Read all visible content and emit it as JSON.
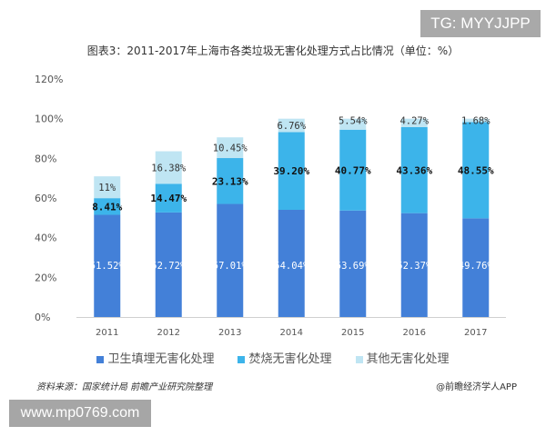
{
  "watermark_top": "TG: MYYJJPP",
  "watermark_bottom": "www.mp0769.com",
  "source": "资料来源：国家统计局 前瞻产业研究院整理",
  "credit": "@前瞻经济学人APP",
  "chart_data": {
    "type": "bar",
    "stacked": true,
    "title": "图表3：2011-2017年上海市各类垃圾无害化处理方式占比情况（单位：%）",
    "categories": [
      "2011",
      "2012",
      "2013",
      "2014",
      "2015",
      "2016",
      "2017"
    ],
    "series": [
      {
        "name": "卫生填埋无害化处理",
        "color": "#4380d8",
        "values": [
          51.52,
          52.72,
          57.01,
          54.04,
          53.69,
          52.37,
          49.76
        ],
        "labels": [
          "51.52%",
          "52.72%",
          "57.01%",
          "54.04%",
          "53.69%",
          "52.37%",
          "49.76%"
        ]
      },
      {
        "name": "焚烧无害化处理",
        "color": "#3cb4ea",
        "values": [
          8.41,
          14.47,
          23.13,
          39.2,
          40.77,
          43.36,
          48.55
        ],
        "labels": [
          "8.41%",
          "14.47%",
          "23.13%",
          "39.20%",
          "40.77%",
          "43.36%",
          "48.55%"
        ]
      },
      {
        "name": "其他无害化处理",
        "color": "#bfe5f3",
        "values": [
          11,
          16.38,
          10.45,
          6.76,
          5.54,
          4.27,
          1.68
        ],
        "labels": [
          "11%",
          "16.38%",
          "10.45%",
          "6.76%",
          "5.54%",
          "4.27%",
          "1.68%"
        ]
      }
    ],
    "yticks": [
      "0%",
      "20%",
      "40%",
      "60%",
      "80%",
      "100%",
      "120%"
    ],
    "ylim": [
      0,
      120
    ],
    "grid": false,
    "legend": "bottom"
  }
}
